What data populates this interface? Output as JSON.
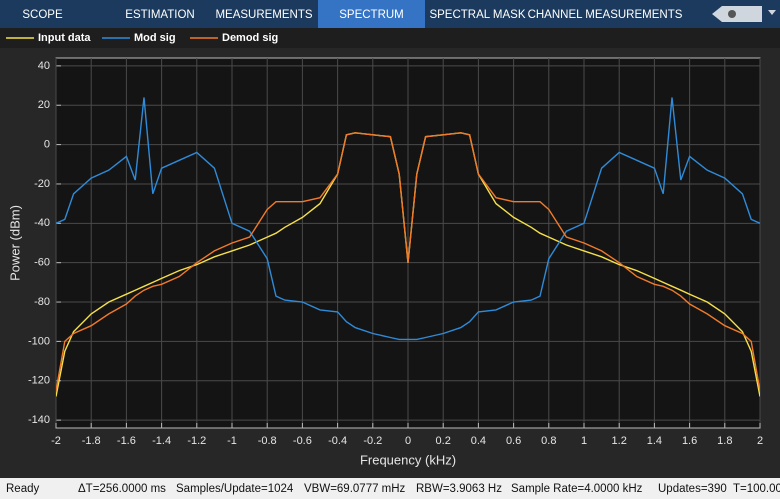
{
  "toolbar": {
    "tabs": [
      "SCOPE",
      "ESTIMATION",
      "MEASUREMENTS",
      "SPECTRUM",
      "SPECTRAL MASK",
      "CHANNEL MEASUREMENTS"
    ]
  },
  "chart_data": {
    "type": "line",
    "xlabel": "Frequency (kHz)",
    "ylabel": "Power (dBm)",
    "x": [
      -2,
      -1.95,
      -1.9,
      -1.8,
      -1.7,
      -1.6,
      -1.55,
      -1.5,
      -1.45,
      -1.4,
      -1.3,
      -1.2,
      -1.1,
      -1.0,
      -0.9,
      -0.8,
      -0.75,
      -0.7,
      -0.6,
      -0.5,
      -0.4,
      -0.35,
      -0.3,
      -0.2,
      -0.1,
      -0.05,
      0,
      0.05,
      0.1,
      0.2,
      0.3,
      0.35,
      0.4,
      0.5,
      0.6,
      0.7,
      0.75,
      0.8,
      0.9,
      1.0,
      1.1,
      1.2,
      1.3,
      1.4,
      1.45,
      1.5,
      1.55,
      1.6,
      1.7,
      1.8,
      1.9,
      1.95,
      2
    ],
    "series": [
      {
        "name": "Input data",
        "color": "#f5e04a",
        "values": [
          -128,
          -105,
          -95,
          -86,
          -80,
          -76,
          -74,
          -72,
          -70,
          -68,
          -64,
          -61,
          -57,
          -54,
          -51,
          -47,
          -45,
          -42,
          -37,
          -30,
          -15,
          5,
          6,
          5,
          4,
          -15,
          -60,
          -15,
          4,
          5,
          6,
          5,
          -15,
          -30,
          -37,
          -42,
          -45,
          -47,
          -51,
          -54,
          -57,
          -61,
          -64,
          -68,
          -70,
          -72,
          -74,
          -76,
          -80,
          -86,
          -95,
          -105,
          -128
        ]
      },
      {
        "name": "Mod sig",
        "color": "#2f8bd8",
        "values": [
          -40,
          -38,
          -25,
          -17,
          -13,
          -6,
          -18,
          24,
          -25,
          -12,
          -8,
          -4,
          -12,
          -40,
          -44,
          -58,
          -77,
          -79,
          -80,
          -84,
          -85,
          -90,
          -93,
          -96,
          -98,
          -99,
          -99,
          -99,
          -98,
          -96,
          -93,
          -90,
          -85,
          -84,
          -80,
          -79,
          -77,
          -58,
          -44,
          -40,
          -12,
          -4,
          -8,
          -12,
          -25,
          24,
          -18,
          -6,
          -13,
          -17,
          -25,
          -38,
          -40
        ]
      },
      {
        "name": "Demod sig",
        "color": "#f07a2a",
        "values": [
          -125,
          -100,
          -96,
          -92,
          -86,
          -81,
          -77,
          -74,
          -72,
          -71,
          -67,
          -60,
          -54,
          -50,
          -47,
          -33,
          -29,
          -29,
          -29,
          -27,
          -15,
          5,
          6,
          5,
          4,
          -15,
          -60,
          -15,
          4,
          5,
          6,
          5,
          -15,
          -27,
          -29,
          -29,
          -29,
          -33,
          -47,
          -50,
          -54,
          -60,
          -67,
          -71,
          -72,
          -74,
          -77,
          -81,
          -86,
          -92,
          -96,
          -100,
          -125
        ]
      }
    ],
    "xlim": [
      -2,
      2
    ],
    "ylim": [
      -144,
      44
    ],
    "xticks": [
      -2,
      -1.8,
      -1.6,
      -1.4,
      -1.2,
      -1,
      -0.8,
      -0.6,
      -0.4,
      -0.2,
      0,
      0.2,
      0.4,
      0.6,
      0.8,
      1,
      1.2,
      1.4,
      1.6,
      1.8,
      2
    ],
    "yticks": [
      -140,
      -120,
      -100,
      -80,
      -60,
      -40,
      -20,
      0,
      20,
      40
    ],
    "grid": true
  },
  "status": [
    "Ready",
    "ΔT=256.0000 ms",
    "Samples/Update=1024",
    "VBW=69.0777 mHz",
    "RBW=3.9063 Hz",
    "Sample Rate=4.0000 kHz",
    "Updates=390",
    "T=100.00"
  ]
}
